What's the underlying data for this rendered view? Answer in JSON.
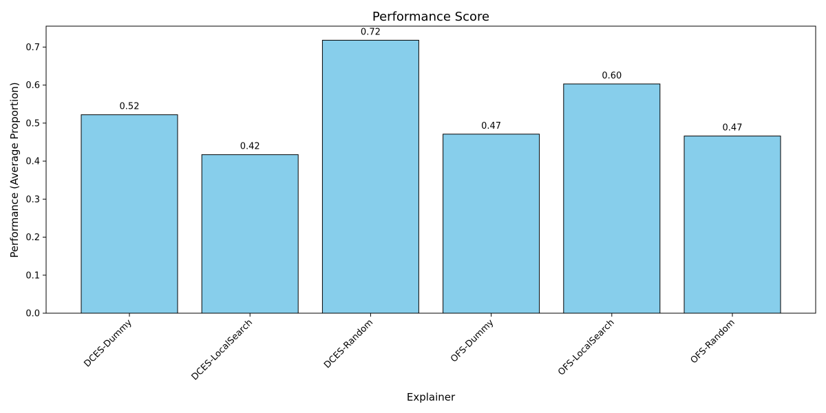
{
  "chart_data": {
    "type": "bar",
    "title": "Performance Score",
    "xlabel": "Explainer",
    "ylabel": "Performance (Average Proportion)",
    "categories": [
      "DCES-Dummy",
      "DCES-LocalSearch",
      "DCES-Random",
      "OFS-Dummy",
      "OFS-LocalSearch",
      "OFS-Random"
    ],
    "values": [
      0.522,
      0.417,
      0.718,
      0.471,
      0.603,
      0.466
    ],
    "value_labels": [
      "0.52",
      "0.42",
      "0.72",
      "0.47",
      "0.60",
      "0.47"
    ],
    "ylim": [
      0,
      0.755
    ],
    "yticks": [
      0.0,
      0.1,
      0.2,
      0.3,
      0.4,
      0.5,
      0.6,
      0.7
    ],
    "ytick_labels": [
      "0.0",
      "0.1",
      "0.2",
      "0.3",
      "0.4",
      "0.5",
      "0.6",
      "0.7"
    ],
    "grid": false,
    "bar_color": "#87CEEB",
    "bar_edge_color": "#000000"
  }
}
